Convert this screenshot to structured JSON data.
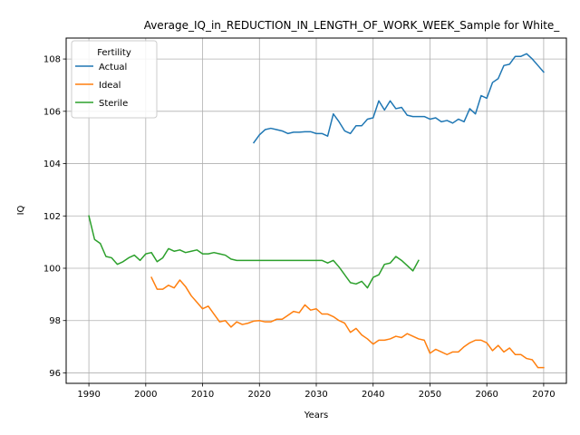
{
  "chart_data": {
    "type": "line",
    "title": "Average_IQ_in_REDUCTION_IN_LENGTH_OF_WORK_WEEK_Sample for White_",
    "xlabel": "Years",
    "ylabel": "IQ",
    "xlim": [
      1986,
      2074
    ],
    "ylim": [
      95.6,
      108.8
    ],
    "xticks": [
      1990,
      2000,
      2010,
      2020,
      2030,
      2040,
      2050,
      2060,
      2070
    ],
    "yticks": [
      96,
      98,
      100,
      102,
      104,
      106,
      108
    ],
    "grid": true,
    "legend": {
      "title": "Fertility",
      "position": "upper-left"
    },
    "series": [
      {
        "name": "Actual",
        "color": "#1f77b4",
        "x": [
          2019,
          2020,
          2021,
          2022,
          2023,
          2024,
          2025,
          2026,
          2027,
          2028,
          2029,
          2030,
          2031,
          2032,
          2033,
          2034,
          2035,
          2036,
          2037,
          2038,
          2039,
          2040,
          2041,
          2042,
          2043,
          2044,
          2045,
          2046,
          2047,
          2048,
          2049,
          2050,
          2051,
          2052,
          2053,
          2054,
          2055,
          2056,
          2057,
          2058,
          2059,
          2060,
          2061,
          2062,
          2063,
          2064,
          2065,
          2066,
          2067,
          2068,
          2069,
          2070
        ],
        "y": [
          104.8,
          105.1,
          105.3,
          105.35,
          105.3,
          105.25,
          105.15,
          105.2,
          105.2,
          105.22,
          105.22,
          105.15,
          105.15,
          105.05,
          105.9,
          105.6,
          105.25,
          105.15,
          105.45,
          105.45,
          105.7,
          105.75,
          106.4,
          106.05,
          106.4,
          106.1,
          106.15,
          105.85,
          105.8,
          105.8,
          105.8,
          105.7,
          105.75,
          105.6,
          105.65,
          105.55,
          105.7,
          105.6,
          106.1,
          105.9,
          106.6,
          106.5,
          107.1,
          107.25,
          107.75,
          107.8,
          108.1,
          108.1,
          108.2,
          108.0,
          107.75,
          107.5
        ]
      },
      {
        "name": "Ideal",
        "color": "#ff7f0e",
        "x": [
          2001,
          2002,
          2003,
          2004,
          2005,
          2006,
          2007,
          2008,
          2009,
          2010,
          2011,
          2012,
          2013,
          2014,
          2015,
          2016,
          2017,
          2018,
          2019,
          2020,
          2021,
          2022,
          2023,
          2024,
          2025,
          2026,
          2027,
          2028,
          2029,
          2030,
          2031,
          2032,
          2033,
          2034,
          2035,
          2036,
          2037,
          2038,
          2039,
          2040,
          2041,
          2042,
          2043,
          2044,
          2045,
          2046,
          2047,
          2048,
          2049,
          2050,
          2051,
          2052,
          2053,
          2054,
          2055,
          2056,
          2057,
          2058,
          2059,
          2060,
          2061,
          2062,
          2063,
          2064,
          2065,
          2066,
          2067,
          2068,
          2069,
          2070
        ],
        "y": [
          99.65,
          99.2,
          99.2,
          99.35,
          99.25,
          99.55,
          99.3,
          98.95,
          98.7,
          98.45,
          98.55,
          98.25,
          97.95,
          98.0,
          97.75,
          97.95,
          97.85,
          97.9,
          97.98,
          98.0,
          97.95,
          97.95,
          98.05,
          98.05,
          98.2,
          98.35,
          98.3,
          98.6,
          98.4,
          98.45,
          98.25,
          98.25,
          98.15,
          98.0,
          97.9,
          97.55,
          97.7,
          97.45,
          97.3,
          97.1,
          97.25,
          97.25,
          97.3,
          97.4,
          97.35,
          97.5,
          97.4,
          97.3,
          97.25,
          96.75,
          96.9,
          96.8,
          96.7,
          96.8,
          96.8,
          97.0,
          97.15,
          97.25,
          97.25,
          97.15,
          96.85,
          97.05,
          96.8,
          96.95,
          96.7,
          96.7,
          96.55,
          96.5,
          96.2,
          96.2
        ]
      },
      {
        "name": "Sterile",
        "color": "#2ca02c",
        "x": [
          1990,
          1991,
          1992,
          1993,
          1994,
          1995,
          1996,
          1997,
          1998,
          1999,
          2000,
          2001,
          2002,
          2003,
          2004,
          2005,
          2006,
          2007,
          2008,
          2009,
          2010,
          2011,
          2012,
          2013,
          2014,
          2015,
          2016,
          2017,
          2018,
          2019,
          2020,
          2021,
          2022,
          2023,
          2024,
          2025,
          2026,
          2027,
          2028,
          2029,
          2030,
          2031,
          2032,
          2033,
          2034,
          2035,
          2036,
          2037,
          2038,
          2039,
          2040,
          2041,
          2042,
          2043,
          2044,
          2045,
          2046,
          2047,
          2048
        ],
        "y": [
          102.0,
          101.1,
          100.95,
          100.45,
          100.4,
          100.15,
          100.25,
          100.4,
          100.5,
          100.3,
          100.55,
          100.6,
          100.25,
          100.4,
          100.75,
          100.65,
          100.7,
          100.6,
          100.65,
          100.7,
          100.55,
          100.55,
          100.6,
          100.55,
          100.5,
          100.35,
          100.3,
          100.3,
          100.3,
          100.3,
          100.3,
          100.3,
          100.3,
          100.3,
          100.3,
          100.3,
          100.3,
          100.3,
          100.3,
          100.3,
          100.3,
          100.3,
          100.2,
          100.3,
          100.05,
          99.75,
          99.45,
          99.4,
          99.5,
          99.25,
          99.65,
          99.75,
          100.15,
          100.2,
          100.45,
          100.3,
          100.1,
          99.9,
          100.3
        ]
      }
    ]
  }
}
